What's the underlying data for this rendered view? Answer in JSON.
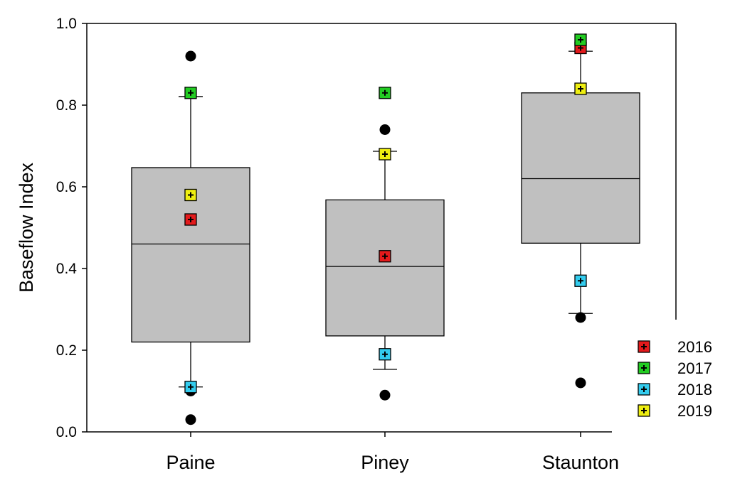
{
  "chart_data": {
    "type": "box",
    "ylabel": "Baseflow Index",
    "xlabel": "",
    "ylim": [
      0.0,
      1.0
    ],
    "yticks": [
      0.0,
      0.2,
      0.4,
      0.6,
      0.8,
      1.0
    ],
    "ytick_labels": [
      "0.0",
      "0.2",
      "0.4",
      "0.6",
      "0.8",
      "1.0"
    ],
    "grid": false,
    "legend_position": "bottom-right",
    "categories": [
      "Paine",
      "Piney",
      "Staunton"
    ],
    "boxes": [
      {
        "category": "Paine",
        "whisker_low": 0.11,
        "q1": 0.22,
        "median": 0.46,
        "q3": 0.647,
        "whisker_high": 0.821,
        "outliers": [
          0.92,
          0.1,
          0.03
        ]
      },
      {
        "category": "Piney",
        "whisker_low": 0.153,
        "q1": 0.235,
        "median": 0.405,
        "q3": 0.568,
        "whisker_high": 0.687,
        "outliers": [
          0.74,
          0.09
        ]
      },
      {
        "category": "Staunton",
        "whisker_low": 0.29,
        "q1": 0.462,
        "median": 0.62,
        "q3": 0.83,
        "whisker_high": 0.932,
        "outliers": [
          0.28,
          0.12
        ]
      }
    ],
    "series": [
      {
        "name": "2016",
        "color": "#e31a1c",
        "values": [
          0.52,
          0.43,
          0.94
        ]
      },
      {
        "name": "2017",
        "color": "#22cc22",
        "values": [
          0.83,
          0.83,
          0.96
        ]
      },
      {
        "name": "2018",
        "color": "#33ccee",
        "values": [
          0.11,
          0.19,
          0.37
        ]
      },
      {
        "name": "2019",
        "color": "#eeee11",
        "values": [
          0.58,
          0.68,
          0.84
        ]
      }
    ],
    "box_fill": "#c0c0c0",
    "outlier_color": "#000000"
  }
}
